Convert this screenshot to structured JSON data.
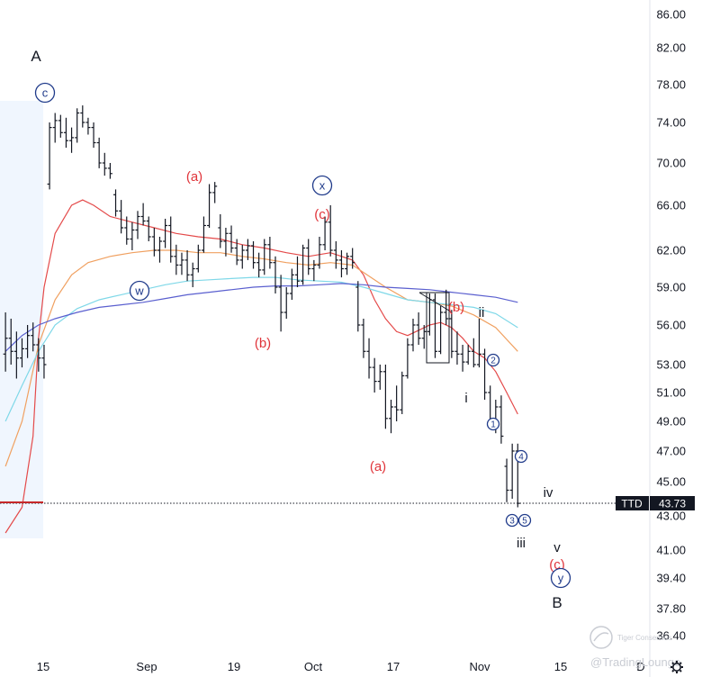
{
  "chart_data": {
    "type": "line",
    "title": "",
    "xlabel": "",
    "ylabel": "",
    "ylim": [
      36.4,
      86.0
    ],
    "y_ticks": [
      "86.00",
      "82.00",
      "78.00",
      "74.00",
      "70.00",
      "66.00",
      "62.00",
      "59.00",
      "56.00",
      "53.00",
      "51.00",
      "49.00",
      "47.00",
      "45.00",
      "43.00",
      "41.00",
      "39.40",
      "37.80",
      "36.40"
    ],
    "x_ticks": [
      "15",
      "Sep",
      "19",
      "Oct",
      "17",
      "Nov",
      "15",
      "D"
    ],
    "price_tag": {
      "symbol": "TTD",
      "value": "43.73"
    },
    "wave_labels": [
      {
        "text": "A",
        "style": "big"
      },
      {
        "text": "c",
        "style": "circle"
      },
      {
        "text": "(a)",
        "style": "red"
      },
      {
        "text": "w",
        "style": "circle"
      },
      {
        "text": "(b)",
        "style": "red"
      },
      {
        "text": "x",
        "style": "circle"
      },
      {
        "text": "(c)",
        "style": "red"
      },
      {
        "text": "(a)",
        "style": "red"
      },
      {
        "text": "(b)",
        "style": "red"
      },
      {
        "text": "ii",
        "style": "black"
      },
      {
        "text": "i",
        "style": "black"
      },
      {
        "text": "2",
        "style": "circle-small"
      },
      {
        "text": "1",
        "style": "circle-small"
      },
      {
        "text": "4",
        "style": "circle-small"
      },
      {
        "text": "iv",
        "style": "black"
      },
      {
        "text": "3",
        "style": "circle-small"
      },
      {
        "text": "5",
        "style": "circle-small"
      },
      {
        "text": "iii",
        "style": "black"
      },
      {
        "text": "v",
        "style": "black"
      },
      {
        "text": "(c)",
        "style": "red"
      },
      {
        "text": "y",
        "style": "circle"
      },
      {
        "text": "B",
        "style": "big"
      }
    ],
    "bars": [
      [
        1,
        53.8,
        57.0,
        52.5,
        55.0
      ],
      [
        2,
        55.0,
        56.5,
        53.0,
        54.0
      ],
      [
        3,
        54.0,
        55.5,
        52.0,
        53.5
      ],
      [
        4,
        53.5,
        55.0,
        52.8,
        54.2
      ],
      [
        5,
        54.2,
        56.0,
        53.5,
        55.2
      ],
      [
        6,
        55.2,
        56.2,
        54.0,
        54.5
      ],
      [
        7,
        54.5,
        55.0,
        52.5,
        53.5
      ],
      [
        8,
        53.5,
        54.5,
        52.0,
        53.0
      ],
      [
        9,
        68.0,
        74.0,
        67.5,
        73.5
      ],
      [
        10,
        73.5,
        75.0,
        72.0,
        74.2
      ],
      [
        11,
        74.2,
        74.8,
        72.5,
        73.0
      ],
      [
        12,
        73.0,
        74.5,
        71.5,
        72.2
      ],
      [
        13,
        72.2,
        73.5,
        71.0,
        72.5
      ],
      [
        14,
        72.5,
        75.5,
        72.0,
        75.0
      ],
      [
        15,
        75.0,
        75.8,
        73.5,
        74.0
      ],
      [
        16,
        74.0,
        74.5,
        72.8,
        73.5
      ],
      [
        17,
        73.5,
        74.0,
        71.5,
        72.0
      ],
      [
        18,
        72.0,
        72.5,
        69.5,
        70.0
      ],
      [
        19,
        70.0,
        71.0,
        68.8,
        69.5
      ],
      [
        20,
        69.5,
        70.0,
        68.5,
        69.0
      ],
      [
        21,
        67.0,
        67.5,
        65.0,
        65.5
      ],
      [
        22,
        65.5,
        66.5,
        63.5,
        64.0
      ],
      [
        23,
        64.0,
        65.0,
        62.5,
        63.0
      ],
      [
        24,
        63.0,
        64.5,
        62.0,
        63.8
      ],
      [
        25,
        63.8,
        65.5,
        63.0,
        65.0
      ],
      [
        26,
        65.0,
        66.2,
        64.2,
        64.6
      ],
      [
        27,
        64.6,
        65.0,
        62.8,
        63.2
      ],
      [
        28,
        63.2,
        64.0,
        61.5,
        62.0
      ],
      [
        29,
        62.0,
        63.2,
        61.0,
        62.8
      ],
      [
        30,
        62.8,
        64.8,
        62.2,
        64.2
      ],
      [
        31,
        64.2,
        65.0,
        61.0,
        61.5
      ],
      [
        32,
        61.5,
        62.5,
        60.0,
        60.8
      ],
      [
        33,
        60.8,
        61.8,
        60.0,
        61.2
      ],
      [
        34,
        61.2,
        62.0,
        59.5,
        60.0
      ],
      [
        35,
        60.0,
        61.0,
        59.0,
        60.5
      ],
      [
        36,
        60.5,
        62.5,
        60.2,
        62.0
      ],
      [
        37,
        62.0,
        65.0,
        61.8,
        64.2
      ],
      [
        38,
        64.2,
        68.0,
        64.0,
        67.2
      ],
      [
        39,
        67.2,
        68.2,
        66.2,
        67.8
      ],
      [
        40,
        64.0,
        65.2,
        62.2,
        62.8
      ],
      [
        41,
        62.8,
        64.0,
        61.5,
        63.5
      ],
      [
        42,
        63.5,
        64.2,
        61.8,
        62.2
      ],
      [
        43,
        62.2,
        63.0,
        60.8,
        61.2
      ],
      [
        44,
        61.2,
        62.5,
        60.5,
        62.0
      ],
      [
        45,
        62.0,
        63.0,
        61.2,
        62.4
      ],
      [
        46,
        62.4,
        62.8,
        60.5,
        61.0
      ],
      [
        47,
        61.0,
        61.8,
        59.8,
        60.4
      ],
      [
        48,
        60.4,
        63.0,
        60.0,
        62.5
      ],
      [
        49,
        62.5,
        63.2,
        60.5,
        61.0
      ],
      [
        50,
        61.0,
        61.5,
        58.5,
        59.0
      ],
      [
        51,
        59.0,
        60.0,
        55.5,
        57.0
      ],
      [
        52,
        57.0,
        59.0,
        56.5,
        58.5
      ],
      [
        53,
        58.5,
        60.5,
        58.0,
        60.0
      ],
      [
        54,
        60.0,
        61.5,
        59.0,
        59.5
      ],
      [
        55,
        59.5,
        62.5,
        59.2,
        62.2
      ],
      [
        56,
        62.2,
        63.0,
        60.0,
        60.5
      ],
      [
        57,
        60.5,
        61.2,
        59.5,
        60.8
      ],
      [
        58,
        60.8,
        63.2,
        60.5,
        62.5
      ],
      [
        59,
        62.5,
        65.0,
        62.0,
        64.5
      ],
      [
        60,
        64.5,
        66.0,
        61.5,
        62.0
      ],
      [
        61,
        62.0,
        62.8,
        60.5,
        61.2
      ],
      [
        62,
        61.2,
        62.0,
        59.8,
        60.5
      ],
      [
        63,
        60.5,
        61.8,
        60.0,
        61.5
      ],
      [
        64,
        61.5,
        62.2,
        60.5,
        61.0
      ],
      [
        65,
        59.0,
        59.5,
        55.5,
        56.0
      ],
      [
        66,
        56.0,
        56.5,
        53.5,
        54.0
      ],
      [
        67,
        54.0,
        55.0,
        52.0,
        52.8
      ],
      [
        68,
        52.8,
        53.5,
        51.0,
        51.8
      ],
      [
        69,
        51.8,
        53.0,
        51.2,
        52.5
      ],
      [
        70,
        52.5,
        53.0,
        48.5,
        49.2
      ],
      [
        71,
        49.2,
        50.5,
        48.2,
        50.0
      ],
      [
        72,
        50.0,
        51.5,
        49.0,
        49.8
      ],
      [
        73,
        49.8,
        52.5,
        49.5,
        52.2
      ],
      [
        74,
        52.2,
        55.0,
        52.0,
        54.5
      ],
      [
        75,
        54.5,
        56.5,
        54.0,
        56.0
      ],
      [
        76,
        56.0,
        57.0,
        54.5,
        55.0
      ],
      [
        77,
        55.0,
        56.0,
        54.2,
        55.5
      ],
      [
        78,
        55.5,
        58.5,
        55.2,
        58.0
      ],
      [
        79,
        58.0,
        58.5,
        53.5,
        54.0
      ],
      [
        80,
        54.0,
        57.5,
        53.8,
        57.0
      ],
      [
        81,
        57.0,
        58.8,
        56.0,
        56.5
      ],
      [
        82,
        56.5,
        57.2,
        53.5,
        54.0
      ],
      [
        83,
        54.0,
        55.5,
        53.0,
        53.8
      ],
      [
        84,
        53.8,
        54.5,
        52.5,
        53.2
      ],
      [
        85,
        53.2,
        54.5,
        53.0,
        54.0
      ],
      [
        86,
        54.0,
        55.0,
        52.8,
        53.0
      ],
      [
        87,
        53.0,
        56.5,
        52.8,
        53.8
      ],
      [
        88,
        53.8,
        54.2,
        50.5,
        51.0
      ],
      [
        89,
        51.0,
        51.5,
        48.5,
        49.0
      ],
      [
        90,
        49.0,
        50.5,
        48.2,
        50.0
      ],
      [
        91,
        50.0,
        50.8,
        47.5,
        48.0
      ],
      [
        92,
        46.0,
        46.5,
        43.8,
        44.5
      ],
      [
        93,
        44.5,
        47.5,
        44.0,
        47.0
      ],
      [
        94,
        47.0,
        47.5,
        43.5,
        43.73
      ]
    ],
    "series": [
      {
        "name": "",
        "color": "#e44a4a",
        "values": [
          [
            1,
            42.0
          ],
          [
            4,
            43.5
          ],
          [
            6,
            48.0
          ],
          [
            7,
            55.0
          ],
          [
            8,
            59.0
          ],
          [
            10,
            63.5
          ],
          [
            13,
            66.0
          ],
          [
            15,
            66.5
          ],
          [
            17,
            66.0
          ],
          [
            20,
            65.0
          ],
          [
            24,
            64.5
          ],
          [
            28,
            64.0
          ],
          [
            32,
            63.5
          ],
          [
            36,
            63.2
          ],
          [
            40,
            63.0
          ],
          [
            44,
            62.5
          ],
          [
            48,
            62.2
          ],
          [
            52,
            61.8
          ],
          [
            56,
            61.5
          ],
          [
            60,
            61.8
          ],
          [
            64,
            61.2
          ],
          [
            66,
            60.0
          ],
          [
            68,
            58.0
          ],
          [
            70,
            56.5
          ],
          [
            72,
            55.5
          ],
          [
            74,
            55.2
          ],
          [
            76,
            55.6
          ],
          [
            78,
            56.0
          ],
          [
            80,
            56.2
          ],
          [
            82,
            55.8
          ],
          [
            84,
            55.0
          ],
          [
            86,
            54.0
          ],
          [
            88,
            53.5
          ],
          [
            90,
            52.5
          ],
          [
            92,
            51.0
          ],
          [
            94,
            49.5
          ]
        ]
      },
      {
        "name": "",
        "color": "#f0a060",
        "values": [
          [
            1,
            46.0
          ],
          [
            4,
            49.0
          ],
          [
            7,
            54.5
          ],
          [
            10,
            58.0
          ],
          [
            13,
            60.0
          ],
          [
            16,
            61.0
          ],
          [
            20,
            61.5
          ],
          [
            24,
            61.8
          ],
          [
            28,
            62.0
          ],
          [
            32,
            62.0
          ],
          [
            36,
            61.8
          ],
          [
            40,
            61.8
          ],
          [
            44,
            61.5
          ],
          [
            48,
            61.3
          ],
          [
            52,
            61.0
          ],
          [
            56,
            60.8
          ],
          [
            60,
            61.0
          ],
          [
            64,
            60.8
          ],
          [
            66,
            60.2
          ],
          [
            70,
            59.0
          ],
          [
            74,
            58.0
          ],
          [
            78,
            57.8
          ],
          [
            82,
            57.5
          ],
          [
            86,
            56.8
          ],
          [
            90,
            55.8
          ],
          [
            94,
            54.0
          ]
        ]
      },
      {
        "name": "",
        "color": "#7fd8e8",
        "values": [
          [
            1,
            49.0
          ],
          [
            4,
            51.5
          ],
          [
            7,
            54.0
          ],
          [
            10,
            56.0
          ],
          [
            14,
            57.3
          ],
          [
            18,
            58.0
          ],
          [
            22,
            58.4
          ],
          [
            26,
            58.8
          ],
          [
            30,
            59.2
          ],
          [
            34,
            59.5
          ],
          [
            38,
            59.6
          ],
          [
            42,
            59.7
          ],
          [
            46,
            59.8
          ],
          [
            50,
            59.8
          ],
          [
            54,
            59.6
          ],
          [
            58,
            59.5
          ],
          [
            62,
            59.4
          ],
          [
            66,
            59.0
          ],
          [
            70,
            58.5
          ],
          [
            74,
            58.0
          ],
          [
            78,
            57.8
          ],
          [
            82,
            57.6
          ],
          [
            86,
            57.4
          ],
          [
            90,
            56.9
          ],
          [
            94,
            55.8
          ]
        ]
      },
      {
        "name": "",
        "color": "#5a5fcf",
        "values": [
          [
            1,
            54.0
          ],
          [
            4,
            55.2
          ],
          [
            7,
            56.0
          ],
          [
            10,
            56.5
          ],
          [
            14,
            57.0
          ],
          [
            18,
            57.4
          ],
          [
            22,
            57.6
          ],
          [
            26,
            57.8
          ],
          [
            30,
            58.1
          ],
          [
            34,
            58.4
          ],
          [
            38,
            58.6
          ],
          [
            42,
            58.8
          ],
          [
            46,
            59.0
          ],
          [
            50,
            59.1
          ],
          [
            54,
            59.1
          ],
          [
            58,
            59.2
          ],
          [
            62,
            59.3
          ],
          [
            66,
            59.2
          ],
          [
            70,
            59.0
          ],
          [
            74,
            58.9
          ],
          [
            78,
            58.8
          ],
          [
            82,
            58.6
          ],
          [
            86,
            58.4
          ],
          [
            90,
            58.2
          ],
          [
            94,
            57.8
          ]
        ]
      }
    ],
    "grid": false,
    "legend": "none"
  },
  "watermark": {
    "text": "@TradingLounge",
    "brand": "Tiger Consensus"
  },
  "settings_icon": "gear-icon"
}
